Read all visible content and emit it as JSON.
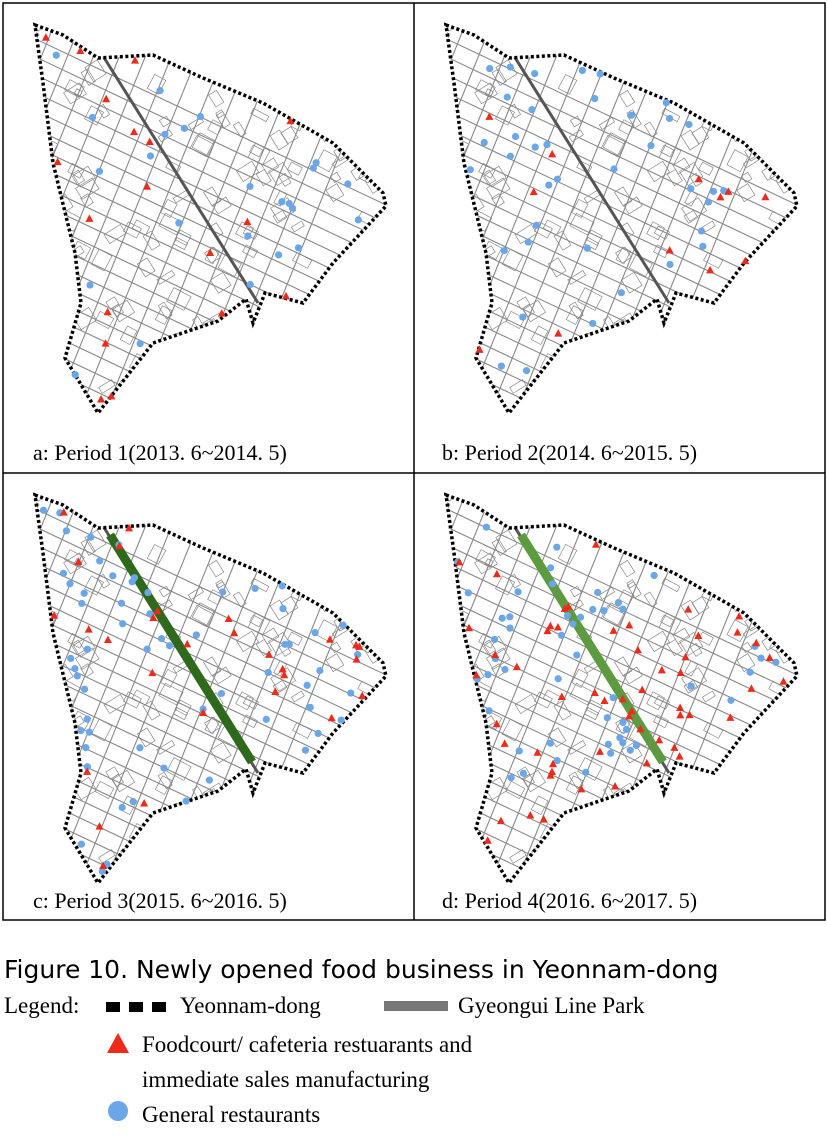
{
  "panels": [
    {
      "caption": "a: Period 1(2013. 6~2014. 5)"
    },
    {
      "caption": "b: Period 2(2014. 6~2015. 5)"
    },
    {
      "caption": "c: Period 3(2015. 6~2016. 5)"
    },
    {
      "caption": "d: Period 4(2016. 6~2017. 5)"
    }
  ],
  "figure_caption": "Figure 10. Newly opened food business in Yeonnam-dong",
  "legend": {
    "label": "Legend:",
    "items": [
      "Yeonnam-dong",
      "Gyeongui Line Park",
      "Foodcourt/ cafeteria restuarants and",
      "immediate sales manufacturing",
      "General restaurants"
    ]
  }
}
